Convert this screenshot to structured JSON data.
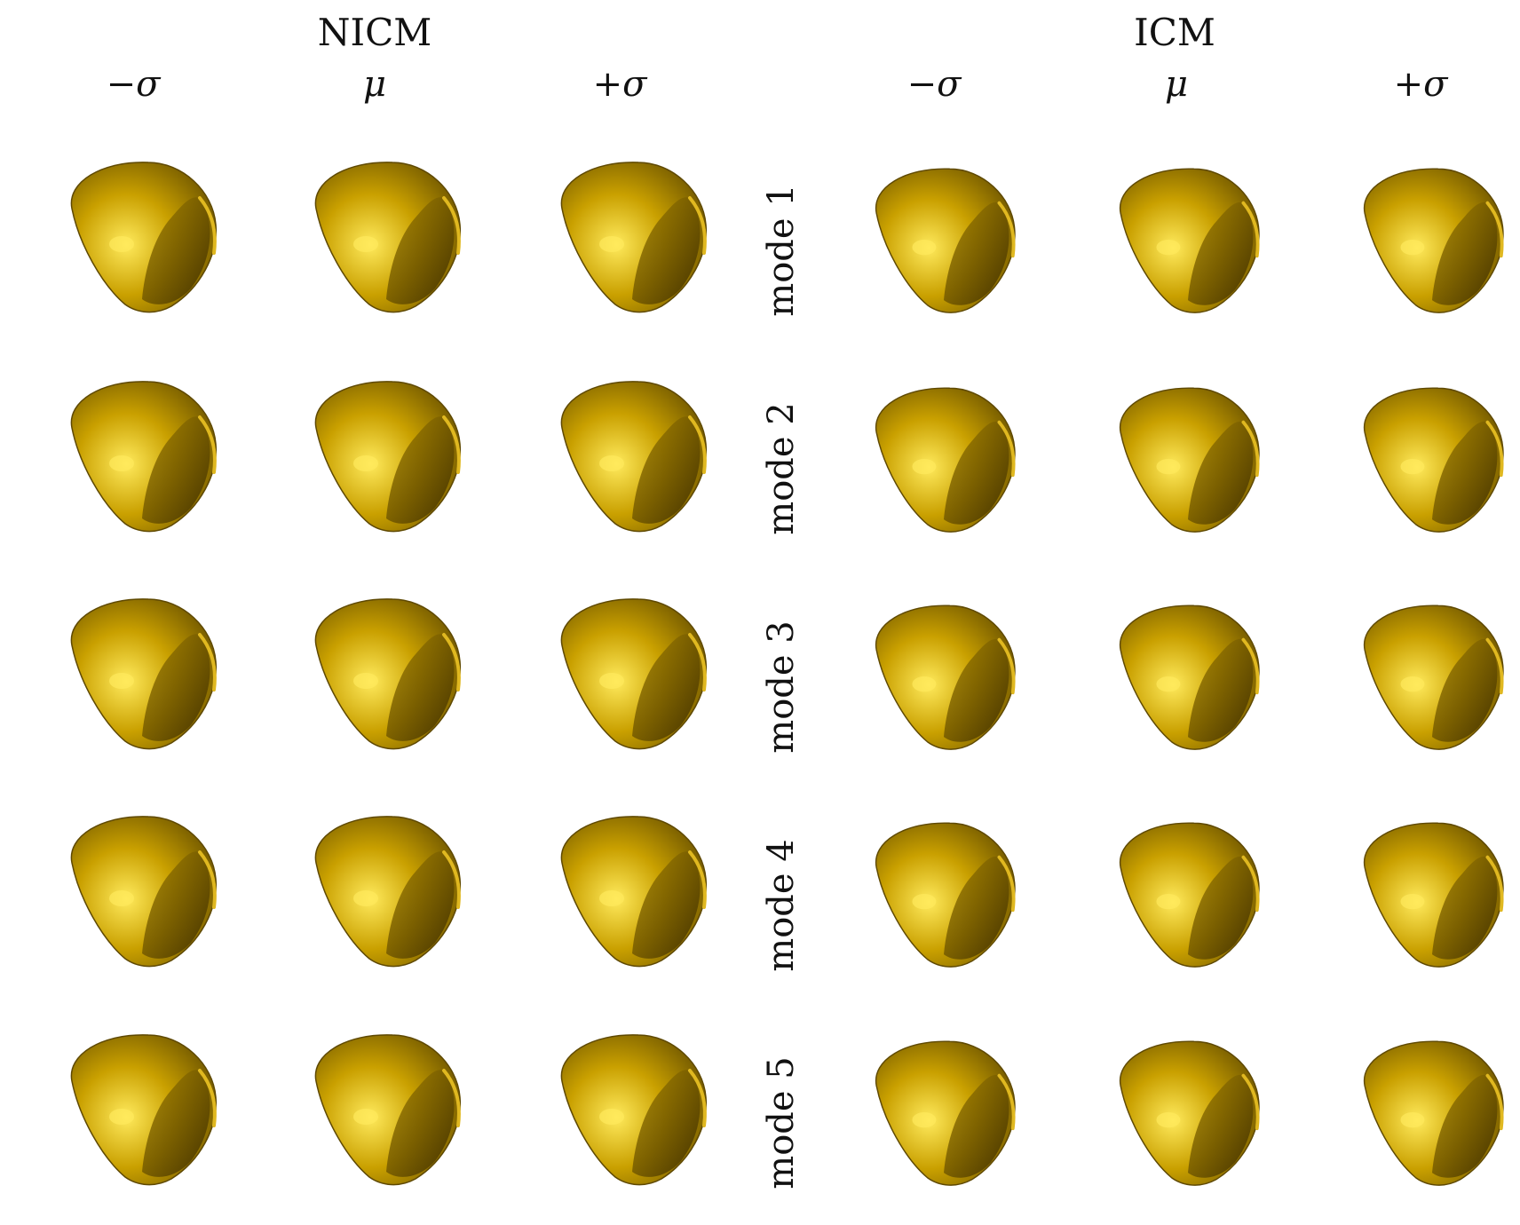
{
  "groups": [
    {
      "title": "NICM",
      "columns": [
        "−σ",
        "μ",
        "+σ"
      ]
    },
    {
      "title": "ICM",
      "columns": [
        "−σ",
        "μ",
        "+σ"
      ]
    }
  ],
  "rows": [
    {
      "label": "mode 1"
    },
    {
      "label": "mode 2"
    },
    {
      "label": "mode 3"
    },
    {
      "label": "mode 4"
    },
    {
      "label": "mode 5"
    }
  ],
  "colors": {
    "shape_base": "#C9A000",
    "shape_highlight": "#FFEA5C",
    "shape_shadow": "#5E4800",
    "cavity": "#3A2A00",
    "background": "#FFFFFF"
  },
  "shape_icon": "heart-ventricle-mesh-icon"
}
